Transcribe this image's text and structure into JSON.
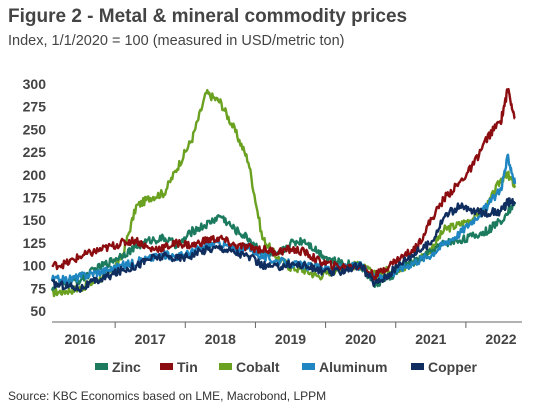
{
  "header": {
    "title": "Figure 2 - Metal & mineral commodity prices",
    "subtitle": "Index, 1/1/2020 = 100 (measured in USD/metric ton)"
  },
  "footer": {
    "source": "Source: KBC Economics based on LME, Macrobond, LPPM"
  },
  "chart_data": {
    "type": "line",
    "title": "Figure 2 - Metal & mineral commodity prices",
    "subtitle": "Index, 1/1/2020 = 100 (measured in USD/metric ton)",
    "xlabel": "",
    "ylabel": "",
    "ylim": [
      50,
      300
    ],
    "yticks": [
      50,
      75,
      100,
      125,
      150,
      175,
      200,
      225,
      250,
      275,
      300
    ],
    "xlim": [
      2015.6,
      2022.3
    ],
    "xticks": [
      2016,
      2017,
      2018,
      2019,
      2020,
      2021,
      2022
    ],
    "xtick_labels": [
      "2016",
      "2017",
      "2018",
      "2019",
      "2020",
      "2021",
      "2022"
    ],
    "grid": false,
    "legend_position": "bottom",
    "series": [
      {
        "name": "Zinc",
        "color": "#1c7a5e",
        "x": [
          2015.6,
          2015.8,
          2016.0,
          2016.2,
          2016.4,
          2016.6,
          2016.8,
          2017.0,
          2017.2,
          2017.4,
          2017.6,
          2017.8,
          2018.0,
          2018.2,
          2018.4,
          2018.6,
          2018.8,
          2019.0,
          2019.2,
          2019.4,
          2019.6,
          2019.8,
          2020.0,
          2020.2,
          2020.4,
          2020.6,
          2020.8,
          2021.0,
          2021.2,
          2021.4,
          2021.6,
          2021.8,
          2022.0,
          2022.2
        ],
        "values": [
          76,
          80,
          84,
          95,
          103,
          112,
          120,
          128,
          130,
          122,
          138,
          145,
          155,
          140,
          130,
          115,
          110,
          125,
          128,
          115,
          105,
          102,
          100,
          80,
          85,
          100,
          105,
          115,
          125,
          128,
          132,
          138,
          150,
          170
        ]
      },
      {
        "name": "Tin",
        "color": "#8b0d10",
        "x": [
          2015.6,
          2015.8,
          2016.0,
          2016.2,
          2016.4,
          2016.6,
          2016.8,
          2017.0,
          2017.2,
          2017.4,
          2017.6,
          2017.8,
          2018.0,
          2018.2,
          2018.4,
          2018.6,
          2018.8,
          2019.0,
          2019.2,
          2019.4,
          2019.6,
          2019.8,
          2020.0,
          2020.2,
          2020.4,
          2020.6,
          2020.8,
          2021.0,
          2021.2,
          2021.4,
          2021.6,
          2021.8,
          2022.0,
          2022.1,
          2022.2
        ],
        "values": [
          100,
          102,
          110,
          115,
          120,
          125,
          128,
          118,
          120,
          125,
          122,
          128,
          130,
          122,
          120,
          118,
          115,
          118,
          115,
          105,
          100,
          98,
          100,
          88,
          100,
          110,
          120,
          150,
          175,
          190,
          210,
          240,
          260,
          295,
          262
        ]
      },
      {
        "name": "Cobalt",
        "color": "#6aa121",
        "x": [
          2015.6,
          2015.8,
          2016.0,
          2016.2,
          2016.4,
          2016.6,
          2016.8,
          2017.0,
          2017.2,
          2017.4,
          2017.6,
          2017.8,
          2018.0,
          2018.2,
          2018.4,
          2018.6,
          2018.8,
          2019.0,
          2019.2,
          2019.4,
          2019.6,
          2019.8,
          2020.0,
          2020.2,
          2020.4,
          2020.6,
          2020.8,
          2021.0,
          2021.2,
          2021.4,
          2021.6,
          2021.8,
          2022.0,
          2022.1,
          2022.2
        ],
        "values": [
          70,
          72,
          75,
          82,
          90,
          110,
          165,
          175,
          180,
          210,
          240,
          290,
          280,
          250,
          215,
          130,
          110,
          98,
          95,
          88,
          95,
          100,
          100,
          90,
          95,
          98,
          105,
          118,
          140,
          145,
          152,
          165,
          195,
          200,
          188
        ]
      },
      {
        "name": "Aluminum",
        "color": "#1f86c1",
        "x": [
          2015.6,
          2015.8,
          2016.0,
          2016.2,
          2016.4,
          2016.6,
          2016.8,
          2017.0,
          2017.2,
          2017.4,
          2017.6,
          2017.8,
          2018.0,
          2018.2,
          2018.4,
          2018.6,
          2018.8,
          2019.0,
          2019.2,
          2019.4,
          2019.6,
          2019.8,
          2020.0,
          2020.2,
          2020.4,
          2020.6,
          2020.8,
          2021.0,
          2021.2,
          2021.4,
          2021.6,
          2021.8,
          2022.0,
          2022.1,
          2022.2
        ],
        "values": [
          85,
          84,
          88,
          92,
          95,
          100,
          104,
          108,
          112,
          110,
          115,
          122,
          125,
          118,
          120,
          110,
          105,
          102,
          100,
          98,
          97,
          98,
          100,
          85,
          90,
          98,
          105,
          112,
          125,
          135,
          150,
          165,
          185,
          220,
          190
        ]
      },
      {
        "name": "Copper",
        "color": "#0f2d5e",
        "x": [
          2015.6,
          2015.8,
          2016.0,
          2016.2,
          2016.4,
          2016.6,
          2016.8,
          2017.0,
          2017.2,
          2017.4,
          2017.6,
          2017.8,
          2018.0,
          2018.2,
          2018.4,
          2018.6,
          2018.8,
          2019.0,
          2019.2,
          2019.4,
          2019.6,
          2019.8,
          2020.0,
          2020.2,
          2020.4,
          2020.6,
          2020.8,
          2021.0,
          2021.2,
          2021.4,
          2021.6,
          2021.8,
          2022.0,
          2022.1,
          2022.2
        ],
        "values": [
          80,
          78,
          75,
          82,
          88,
          95,
          100,
          108,
          110,
          108,
          112,
          118,
          120,
          115,
          110,
          100,
          98,
          102,
          100,
          95,
          92,
          96,
          100,
          80,
          90,
          105,
          115,
          125,
          155,
          165,
          160,
          158,
          160,
          170,
          168
        ]
      }
    ]
  }
}
